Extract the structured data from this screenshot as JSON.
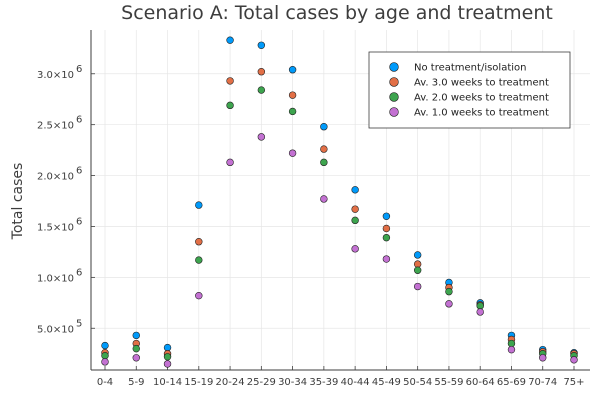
{
  "chart_data": {
    "type": "scatter",
    "title": "Scenario A: Total cases by age and treatment",
    "xlabel": "",
    "ylabel": "Total cases",
    "categories": [
      "0-4",
      "5-9",
      "10-14",
      "15-19",
      "20-24",
      "25-29",
      "30-34",
      "35-39",
      "40-44",
      "45-49",
      "50-54",
      "55-59",
      "60-64",
      "65-69",
      "70-74",
      "75+"
    ],
    "yticks": [
      {
        "value": 500000,
        "label": "5.0×10",
        "exp": "5"
      },
      {
        "value": 1000000,
        "label": "1.0×10",
        "exp": "6"
      },
      {
        "value": 1500000,
        "label": "1.5×10",
        "exp": "6"
      },
      {
        "value": 2000000,
        "label": "2.0×10",
        "exp": "6"
      },
      {
        "value": 2500000,
        "label": "2.5×10",
        "exp": "6"
      },
      {
        "value": 3000000,
        "label": "3.0×10",
        "exp": "6"
      }
    ],
    "ylim": [
      90000,
      3430000
    ],
    "grid": true,
    "legend_position": "top-right",
    "series": [
      {
        "name": "No treatment/isolation",
        "color": "#009AFA",
        "values": [
          330000,
          430000,
          310000,
          1710000,
          3330000,
          3280000,
          3040000,
          2480000,
          1860000,
          1600000,
          1220000,
          950000,
          750000,
          430000,
          290000,
          260000
        ]
      },
      {
        "name": "Av. 3.0 weeks to treatment",
        "color": "#E26F46",
        "values": [
          260000,
          350000,
          250000,
          1350000,
          2930000,
          3020000,
          2790000,
          2260000,
          1670000,
          1480000,
          1130000,
          900000,
          730000,
          390000,
          270000,
          250000
        ]
      },
      {
        "name": "Av. 2.0 weeks to treatment",
        "color": "#3DA44E",
        "values": [
          230000,
          300000,
          220000,
          1170000,
          2690000,
          2840000,
          2630000,
          2130000,
          1560000,
          1390000,
          1070000,
          860000,
          720000,
          350000,
          250000,
          230000
        ]
      },
      {
        "name": "Av. 1.0 weeks to treatment",
        "color": "#C371D2",
        "values": [
          170000,
          210000,
          150000,
          820000,
          2130000,
          2380000,
          2220000,
          1770000,
          1280000,
          1180000,
          910000,
          740000,
          660000,
          290000,
          210000,
          190000
        ]
      }
    ]
  }
}
